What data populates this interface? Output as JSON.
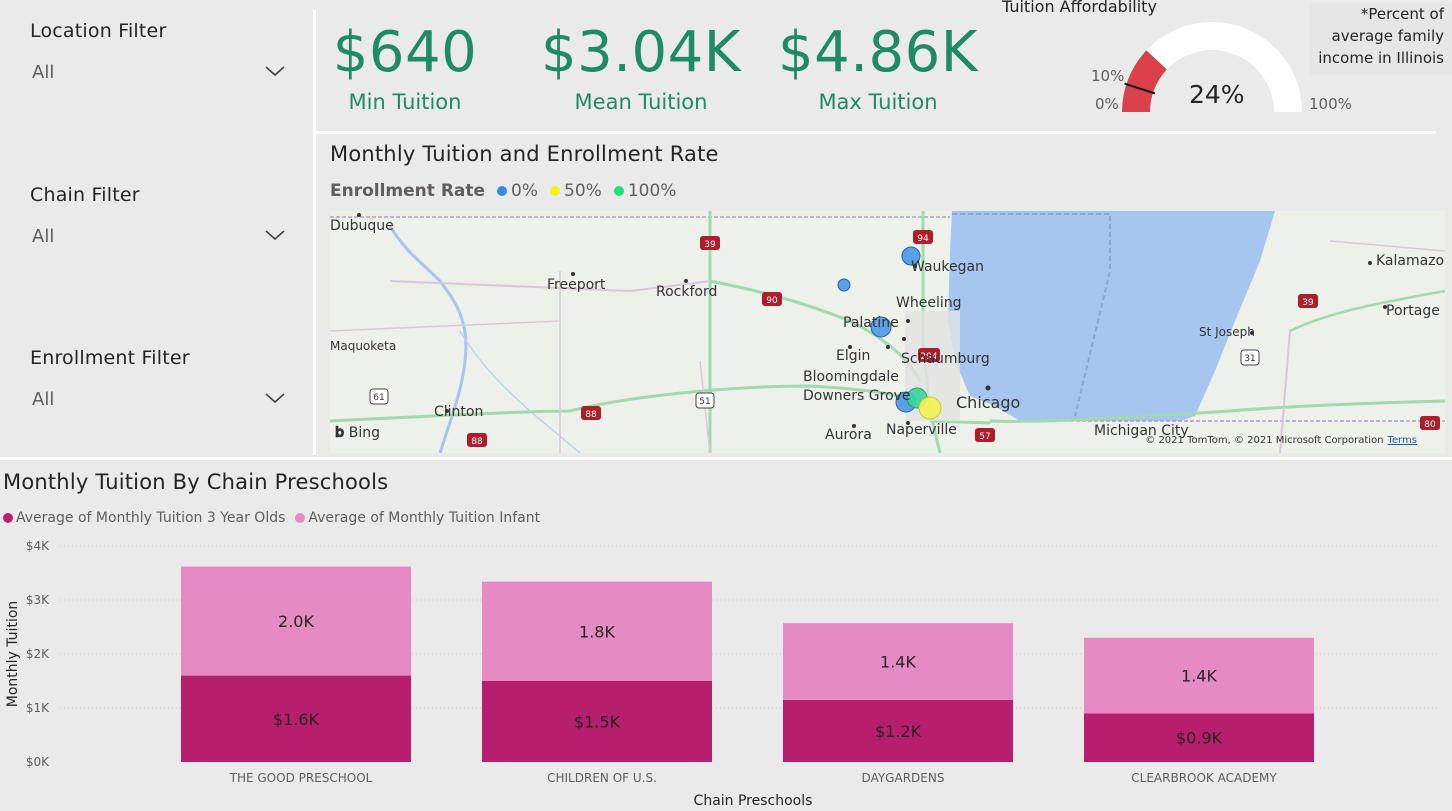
{
  "filters": {
    "location": {
      "title": "Location Filter",
      "value": "All"
    },
    "chain": {
      "title": "Chain Filter",
      "value": "All"
    },
    "enrollment": {
      "title": "Enrollment Filter",
      "value": "All"
    }
  },
  "kpis": {
    "min": {
      "value": "$640",
      "label": "Min Tuition"
    },
    "mean": {
      "value": "$3.04K",
      "label": "Mean Tuition"
    },
    "max": {
      "value": "$4.86K",
      "label": "Max Tuition"
    }
  },
  "gauge": {
    "title": "Tuition Affordability",
    "note_lines": [
      "*Percent of",
      "average family",
      "income in Illinois"
    ],
    "min_label": "0%",
    "max_label": "100%",
    "target_label": "10%",
    "value_label": "24%",
    "value": 0.24,
    "target": 0.1,
    "fill_color": "#d9404a"
  },
  "map": {
    "title": "Monthly Tuition and Enrollment Rate",
    "legend_title": "Enrollment Rate",
    "legend_items": [
      {
        "label": "0%",
        "color": "#2f8fe6"
      },
      {
        "label": "50%",
        "color": "#f2f21c"
      },
      {
        "label": "100%",
        "color": "#1fe07a"
      }
    ],
    "cities": [
      "Dubuque",
      "Freeport",
      "Rockford",
      "Waukegan",
      "Kalamazoo",
      "Wheeling",
      "Palatine",
      "Portage",
      "Maquoketa",
      "Elgin",
      "Schaumburg",
      "St Joseph",
      "Bloomingdale",
      "Downers Grove",
      "Chicago",
      "Clinton",
      "Aurora",
      "Naperville",
      "Michigan City"
    ],
    "highway_shields": [
      "39",
      "94",
      "90",
      "61",
      "51",
      "88",
      "294",
      "31",
      "57",
      "80"
    ],
    "bing_label": "Bing",
    "copyright": "© 2021 TomTom, © 2021 Microsoft Corporation",
    "terms": "Terms"
  },
  "bar_chart": {
    "title": "Monthly Tuition By Chain Preschools",
    "legend": [
      {
        "label": "Average of Monthly Tuition 3 Year Olds",
        "color": "#b81e6e"
      },
      {
        "label": "Average of Monthly Tuition Infant",
        "color": "#e68ac3"
      }
    ]
  },
  "chart_data": {
    "type": "bar",
    "stacked": true,
    "title": "Monthly Tuition By Chain Preschools",
    "xlabel": "Chain Preschools",
    "ylabel": "Monthly Tuition",
    "ylim": [
      0,
      4000
    ],
    "yticks": [
      "$0K",
      "$1K",
      "$2K",
      "$3K",
      "$4K"
    ],
    "categories": [
      "THE GOOD PRESCHOOL",
      "CHILDREN OF U.S.",
      "DAYGARDENS",
      "CLEARBROOK ACADEMY"
    ],
    "series": [
      {
        "name": "Average of Monthly Tuition 3 Year Olds",
        "color": "#b81e6e",
        "values": [
          1600,
          1500,
          1150,
          900
        ],
        "labels": [
          "$1.6K",
          "$1.5K",
          "$1.2K",
          "$0.9K"
        ]
      },
      {
        "name": "Average of Monthly Tuition Infant",
        "color": "#e68ac3",
        "values": [
          2020,
          1840,
          1420,
          1400
        ],
        "labels": [
          "2.0K",
          "1.8K",
          "1.4K",
          "1.4K"
        ]
      }
    ],
    "grid": true,
    "legend_position": "top-left"
  }
}
